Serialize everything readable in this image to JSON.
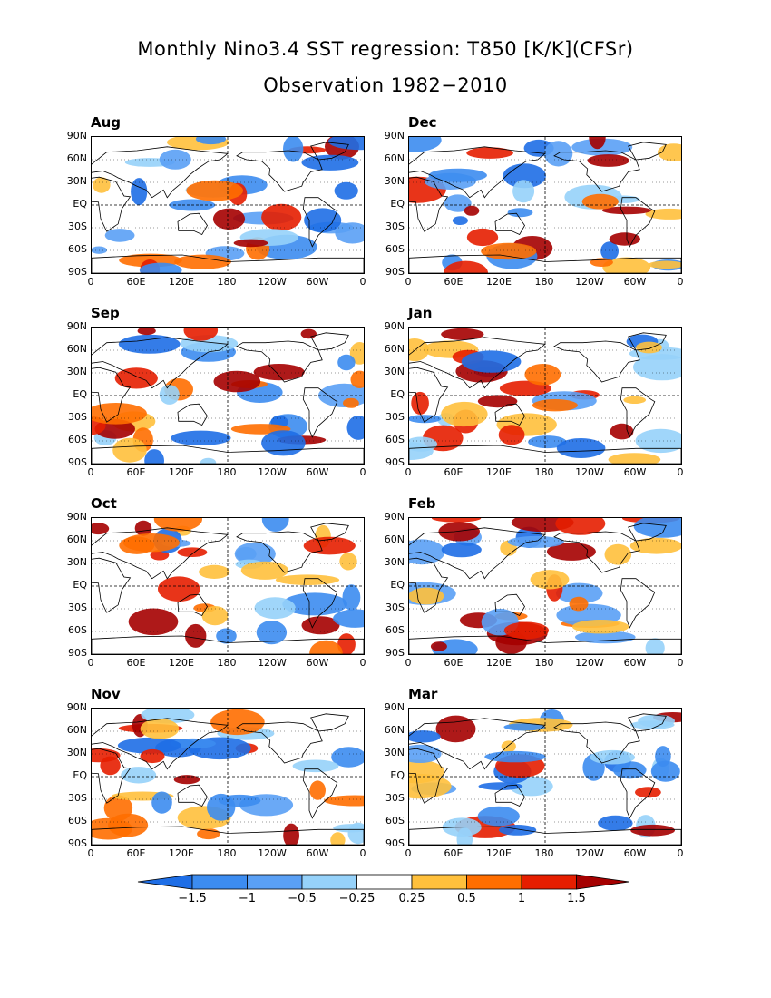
{
  "title": "Monthly Nino3.4 SST regression: T850 [K/K](CFSr)",
  "subtitle": "Observation 1982−2010",
  "panels": [
    {
      "month": "Aug"
    },
    {
      "month": "Dec"
    },
    {
      "month": "Sep"
    },
    {
      "month": "Jan"
    },
    {
      "month": "Oct"
    },
    {
      "month": "Feb"
    },
    {
      "month": "Nov"
    },
    {
      "month": "Mar"
    }
  ],
  "lat_labels": [
    "90N",
    "60N",
    "30N",
    "EQ",
    "30S",
    "60S",
    "90S"
  ],
  "lon_labels": [
    "0",
    "60E",
    "120E",
    "180",
    "120W",
    "60W",
    "0"
  ],
  "colorbar": {
    "levels": [
      "−1.5",
      "−1",
      "−0.5",
      "−0.25",
      "0.25",
      "0.5",
      "1",
      "1.5"
    ],
    "colors": [
      "#1e6ee6",
      "#3c8cf0",
      "#5aa0f5",
      "#96d2fa",
      "#ffffff",
      "#ffc03c",
      "#ff6e00",
      "#e61e00",
      "#a50000"
    ]
  }
}
